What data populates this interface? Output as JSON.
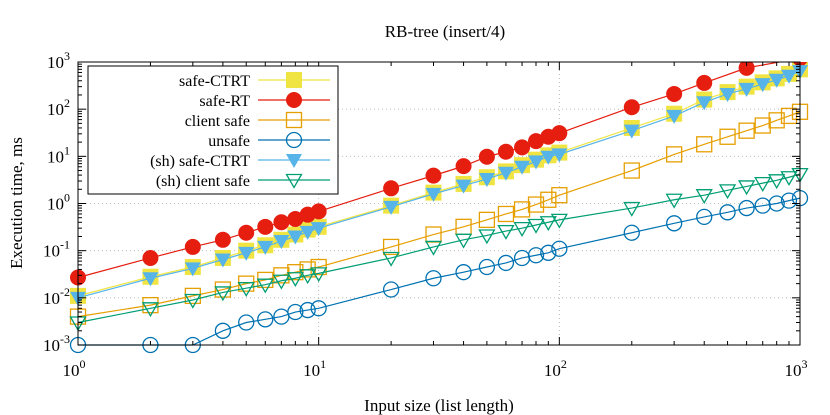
{
  "chart_data": {
    "type": "line",
    "title": "RB-tree (insert/4)",
    "xlabel": "Input size (list length)",
    "ylabel": "Execution time, ms",
    "x_scale": "log",
    "y_scale": "log",
    "xlim": [
      1,
      1000
    ],
    "ylim": [
      0.001,
      1000
    ],
    "grid": true,
    "legend_position": "top-left",
    "x_ticks": [
      {
        "value": 1,
        "base": "10",
        "exp": "0"
      },
      {
        "value": 10,
        "base": "10",
        "exp": "1"
      },
      {
        "value": 100,
        "base": "10",
        "exp": "2"
      },
      {
        "value": 1000,
        "base": "10",
        "exp": "3"
      }
    ],
    "y_ticks": [
      {
        "value": 0.001,
        "base": "10",
        "exp": "-3"
      },
      {
        "value": 0.01,
        "base": "10",
        "exp": "-2"
      },
      {
        "value": 0.1,
        "base": "10",
        "exp": "-1"
      },
      {
        "value": 1,
        "base": "10",
        "exp": "0"
      },
      {
        "value": 10,
        "base": "10",
        "exp": "1"
      },
      {
        "value": 100,
        "base": "10",
        "exp": "2"
      },
      {
        "value": 1000,
        "base": "10",
        "exp": "3"
      }
    ],
    "series": [
      {
        "name": "safe-CTRT",
        "color": "#f0e442",
        "marker": "filled-square",
        "x": [
          1,
          2,
          3,
          4,
          5,
          6,
          7,
          8,
          9,
          10,
          20,
          30,
          40,
          50,
          60,
          70,
          80,
          90,
          100,
          200,
          300,
          400,
          500,
          600,
          700,
          800,
          900,
          1000
        ],
        "y": [
          0.011,
          0.028,
          0.045,
          0.07,
          0.1,
          0.13,
          0.17,
          0.22,
          0.28,
          0.32,
          0.9,
          1.7,
          2.6,
          3.6,
          4.8,
          6.5,
          8.5,
          10.5,
          12,
          40,
          80,
          160,
          230,
          300,
          370,
          450,
          560,
          700
        ]
      },
      {
        "name": "safe-RT",
        "color": "#e51e10",
        "marker": "filled-circle",
        "x": [
          1,
          2,
          3,
          4,
          5,
          6,
          7,
          8,
          9,
          10,
          20,
          30,
          40,
          50,
          60,
          70,
          80,
          90,
          100,
          200,
          300,
          400,
          600,
          1000
        ],
        "y": [
          0.027,
          0.07,
          0.12,
          0.17,
          0.24,
          0.32,
          0.4,
          0.47,
          0.58,
          0.68,
          2.1,
          3.9,
          6.2,
          9.8,
          12.5,
          15.5,
          21,
          26,
          31,
          110,
          210,
          360,
          750,
          1200
        ]
      },
      {
        "name": "client safe",
        "color": "#e69f00",
        "marker": "open-square",
        "x": [
          1,
          2,
          3,
          4,
          5,
          6,
          7,
          8,
          9,
          10,
          20,
          30,
          40,
          50,
          60,
          70,
          80,
          90,
          100,
          200,
          300,
          400,
          500,
          600,
          700,
          800,
          900,
          1000
        ],
        "y": [
          0.004,
          0.007,
          0.011,
          0.015,
          0.02,
          0.024,
          0.03,
          0.035,
          0.04,
          0.045,
          0.12,
          0.22,
          0.32,
          0.45,
          0.6,
          0.75,
          0.95,
          1.2,
          1.5,
          5,
          11,
          18,
          26,
          35,
          45,
          58,
          72,
          88
        ]
      },
      {
        "name": "unsafe",
        "color": "#0072b2",
        "marker": "open-circle",
        "x": [
          1,
          2,
          3,
          4,
          5,
          6,
          7,
          8,
          9,
          10,
          20,
          30,
          40,
          50,
          60,
          70,
          80,
          90,
          100,
          200,
          300,
          400,
          500,
          600,
          700,
          800,
          900,
          1000
        ],
        "y": [
          0.001,
          0.001,
          0.001,
          0.002,
          0.003,
          0.0035,
          0.004,
          0.005,
          0.0055,
          0.006,
          0.015,
          0.026,
          0.035,
          0.045,
          0.055,
          0.07,
          0.08,
          0.09,
          0.11,
          0.24,
          0.38,
          0.52,
          0.65,
          0.8,
          0.9,
          1.0,
          1.15,
          1.3
        ]
      },
      {
        "name": "(sh) safe-CTRT",
        "color": "#56b4e9",
        "marker": "filled-triangle-down",
        "x": [
          1,
          2,
          3,
          4,
          5,
          6,
          7,
          8,
          9,
          10,
          20,
          30,
          40,
          50,
          60,
          70,
          80,
          90,
          100,
          200,
          300,
          400,
          500,
          600,
          700,
          800,
          900,
          1000
        ],
        "y": [
          0.01,
          0.026,
          0.042,
          0.065,
          0.09,
          0.12,
          0.16,
          0.2,
          0.25,
          0.3,
          0.85,
          1.6,
          2.4,
          3.3,
          4.5,
          6,
          7.8,
          9.8,
          11,
          35,
          72,
          140,
          210,
          270,
          340,
          420,
          510,
          640
        ]
      },
      {
        "name": "(sh) client safe",
        "color": "#009e73",
        "marker": "open-triangle-down",
        "x": [
          1,
          2,
          3,
          4,
          5,
          6,
          7,
          8,
          9,
          10,
          20,
          30,
          40,
          50,
          60,
          70,
          80,
          90,
          100,
          200,
          300,
          400,
          500,
          600,
          700,
          800,
          900,
          1000
        ],
        "y": [
          0.003,
          0.006,
          0.009,
          0.013,
          0.016,
          0.019,
          0.023,
          0.026,
          0.03,
          0.033,
          0.07,
          0.12,
          0.17,
          0.21,
          0.26,
          0.3,
          0.35,
          0.4,
          0.45,
          0.8,
          1.2,
          1.5,
          1.9,
          2.3,
          2.7,
          3.1,
          3.6,
          4.2
        ]
      }
    ]
  }
}
